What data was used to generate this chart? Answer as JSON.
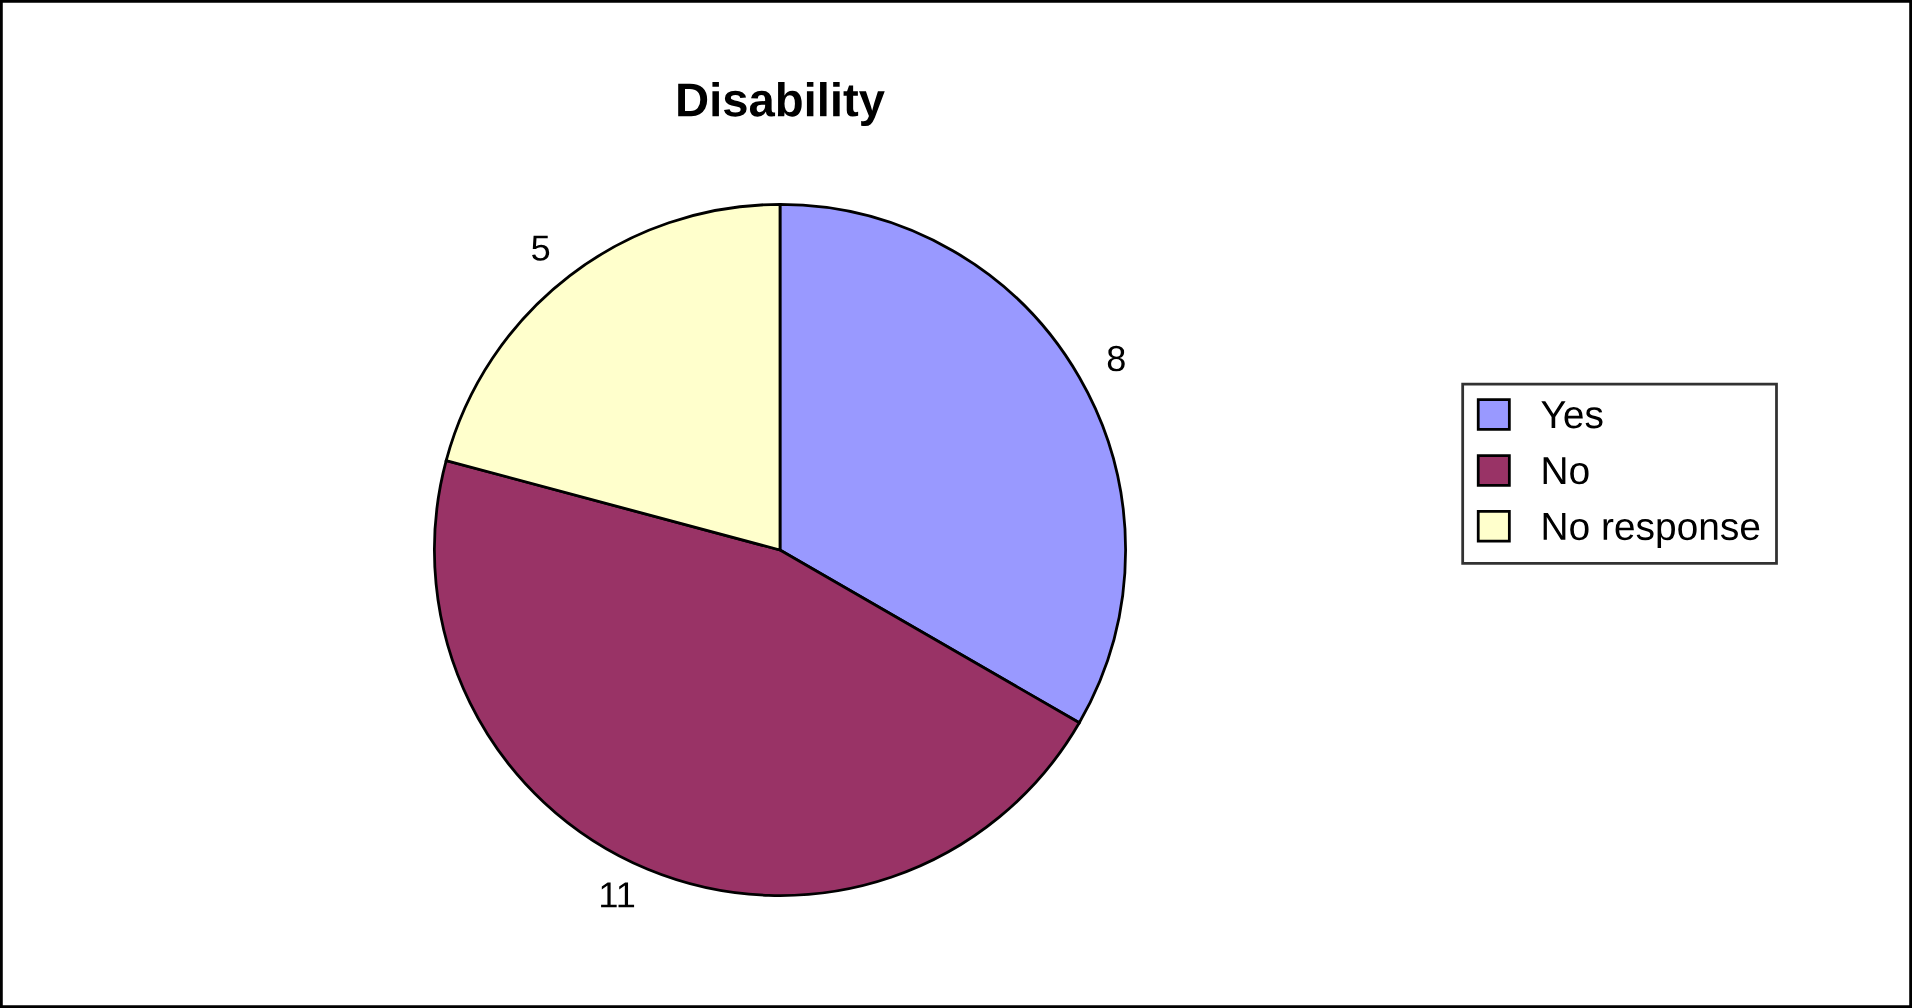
{
  "chart_data": {
    "type": "pie",
    "title": "Disability",
    "categories": [
      "Yes",
      "No",
      "No response"
    ],
    "values": [
      8,
      11,
      5
    ],
    "colors": [
      "#9999ff",
      "#993366",
      "#ffffcc"
    ],
    "data_labels": true,
    "legend": "right"
  }
}
